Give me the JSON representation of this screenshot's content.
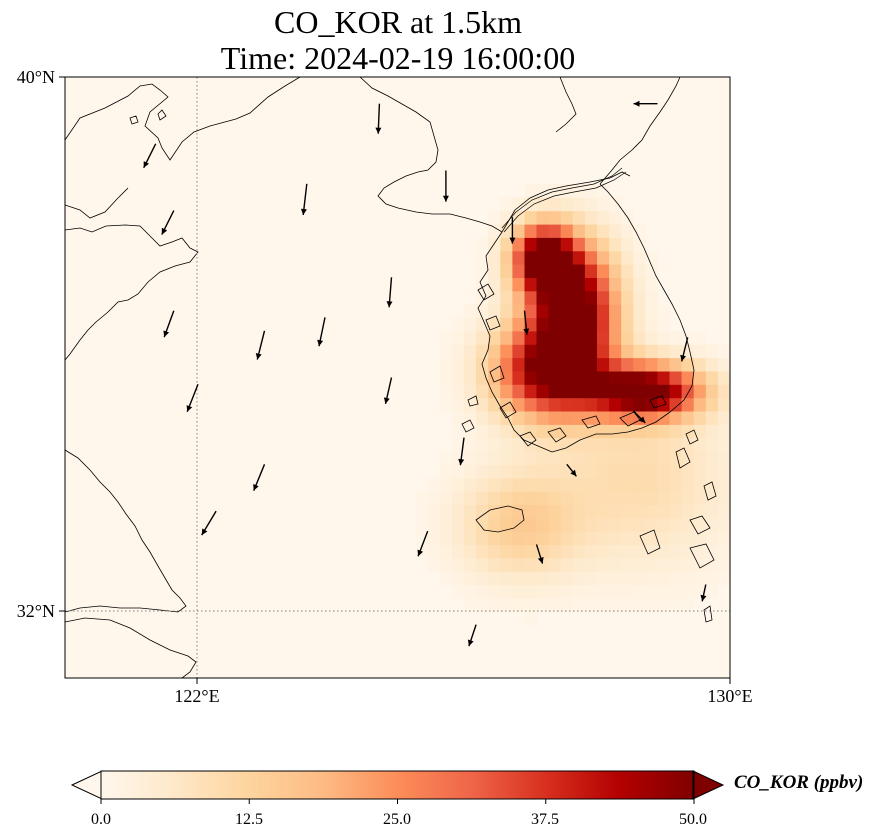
{
  "title": {
    "line1": "CO_KOR at 1.5km",
    "line2": "Time: 2024-02-19 16:00:00"
  },
  "map": {
    "lon_range": [
      119,
      130
    ],
    "lat_range": [
      31,
      40
    ],
    "lat_ticks": [
      {
        "value": 40,
        "label": "40°N"
      },
      {
        "value": 32,
        "label": "32°N"
      }
    ],
    "lon_ticks": [
      {
        "value": 122,
        "label": "122°E"
      },
      {
        "value": 130,
        "label": "130°E"
      }
    ],
    "gridlines": {
      "lons": [
        122
      ],
      "lats": [
        32
      ]
    }
  },
  "colorbar": {
    "label": "CO_KOR (ppbv)",
    "ticks": [
      "0.0",
      "12.5",
      "25.0",
      "37.5",
      "50.0"
    ],
    "range": [
      0,
      50
    ],
    "colormap": "OrRd",
    "extend": "both",
    "colors": [
      "#fff7ec",
      "#fee8c8",
      "#fdd49e",
      "#fdbb84",
      "#fc8d59",
      "#ef6548",
      "#d7301f",
      "#b30000",
      "#7f0000"
    ]
  },
  "chart_data": {
    "type": "heatmap",
    "variable": "CO_KOR",
    "units": "ppbv",
    "level": "1.5km",
    "time": "2024-02-19 16:00:00",
    "value_range": [
      0,
      50
    ],
    "plumes": [
      {
        "lon": 127.4,
        "lat": 36.6,
        "peak": 55,
        "spread_lon": 0.7,
        "spread_lat": 0.9
      },
      {
        "lon": 127.0,
        "lat": 35.6,
        "peak": 48,
        "spread_lon": 0.9,
        "spread_lat": 0.7
      },
      {
        "lon": 128.6,
        "lat": 35.3,
        "peak": 55,
        "spread_lon": 0.9,
        "spread_lat": 0.4
      },
      {
        "lon": 126.9,
        "lat": 37.3,
        "peak": 50,
        "spread_lon": 0.5,
        "spread_lat": 0.5
      },
      {
        "lon": 126.5,
        "lat": 33.3,
        "peak": 14,
        "spread_lon": 1.0,
        "spread_lat": 0.8
      },
      {
        "lon": 128.5,
        "lat": 34.0,
        "peak": 10,
        "spread_lon": 1.5,
        "spread_lat": 1.3
      }
    ],
    "wind_vectors": [
      {
        "lon": 120.5,
        "lat": 39.0,
        "u": -1.0,
        "v": -2.0
      },
      {
        "lon": 120.8,
        "lat": 38.0,
        "u": -1.0,
        "v": -2.0
      },
      {
        "lon": 120.8,
        "lat": 36.5,
        "u": -0.8,
        "v": -2.2
      },
      {
        "lon": 121.2,
        "lat": 35.4,
        "u": -0.9,
        "v": -2.3
      },
      {
        "lon": 121.5,
        "lat": 33.5,
        "u": -1.2,
        "v": -2.0
      },
      {
        "lon": 122.3,
        "lat": 36.2,
        "u": -0.6,
        "v": -2.4
      },
      {
        "lon": 122.3,
        "lat": 34.2,
        "u": -0.9,
        "v": -2.2
      },
      {
        "lon": 123.0,
        "lat": 38.4,
        "u": -0.3,
        "v": -2.6
      },
      {
        "lon": 123.3,
        "lat": 36.4,
        "u": -0.5,
        "v": -2.4
      },
      {
        "lon": 124.2,
        "lat": 39.6,
        "u": -0.1,
        "v": -2.5
      },
      {
        "lon": 124.4,
        "lat": 37.0,
        "u": -0.2,
        "v": -2.5
      },
      {
        "lon": 124.4,
        "lat": 35.5,
        "u": -0.5,
        "v": -2.2
      },
      {
        "lon": 125.0,
        "lat": 33.2,
        "u": -0.8,
        "v": -2.1
      },
      {
        "lon": 125.3,
        "lat": 38.6,
        "u": 0.0,
        "v": -2.6
      },
      {
        "lon": 125.6,
        "lat": 34.6,
        "u": -0.3,
        "v": -2.3
      },
      {
        "lon": 125.8,
        "lat": 31.8,
        "u": -0.6,
        "v": -1.8
      },
      {
        "lon": 126.4,
        "lat": 37.9,
        "u": 0.0,
        "v": -2.2
      },
      {
        "lon": 126.6,
        "lat": 36.5,
        "u": 0.2,
        "v": -2.0
      },
      {
        "lon": 126.8,
        "lat": 33.0,
        "u": 0.5,
        "v": -1.6
      },
      {
        "lon": 127.3,
        "lat": 34.2,
        "u": 0.8,
        "v": -1.0
      },
      {
        "lon": 128.4,
        "lat": 35.0,
        "u": 1.0,
        "v": -1.0
      },
      {
        "lon": 128.8,
        "lat": 39.6,
        "u": -2.0,
        "v": 0.0
      },
      {
        "lon": 129.3,
        "lat": 36.1,
        "u": -0.5,
        "v": -2.0
      },
      {
        "lon": 129.6,
        "lat": 32.4,
        "u": -0.3,
        "v": -1.4
      }
    ]
  }
}
